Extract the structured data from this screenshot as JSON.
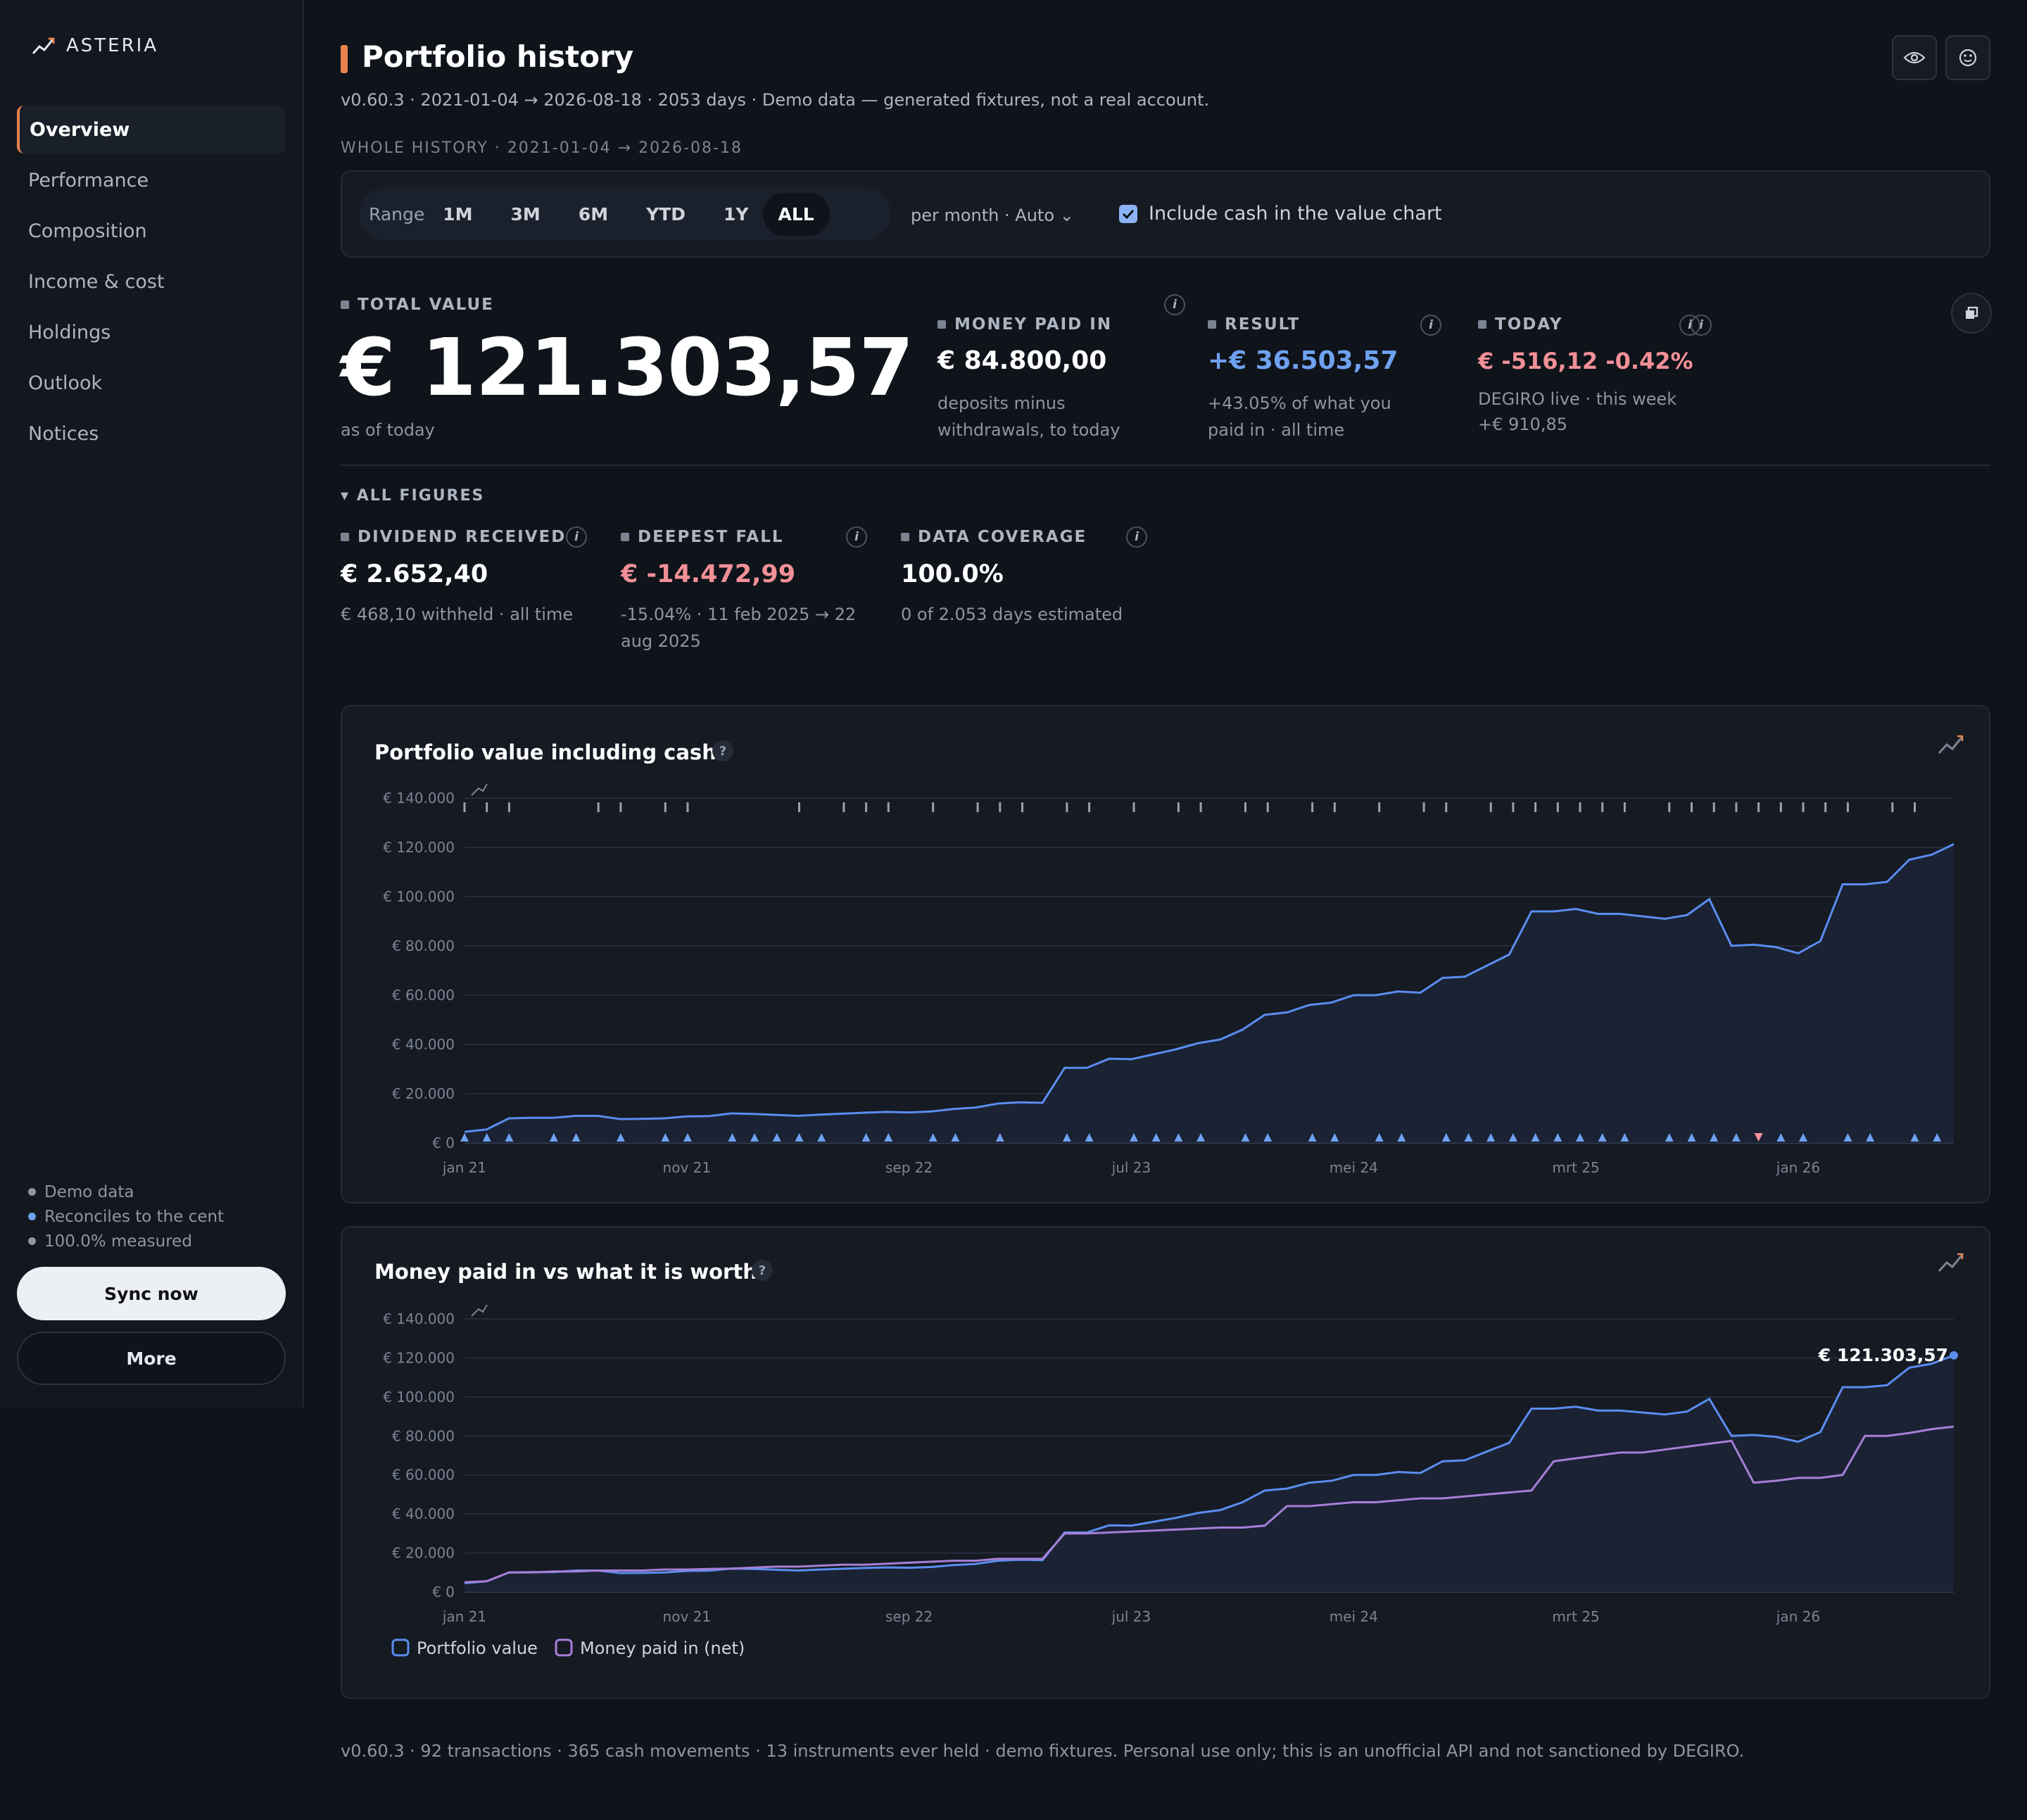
{
  "brand": {
    "name": "ASTERIA",
    "icon": "trend-icon"
  },
  "sidebar": {
    "items": [
      {
        "label": "Overview",
        "active": true
      },
      {
        "label": "Performance"
      },
      {
        "label": "Composition"
      },
      {
        "label": "Income & cost"
      },
      {
        "label": "Holdings"
      },
      {
        "label": "Outlook"
      },
      {
        "label": "Notices"
      }
    ],
    "status": [
      "Demo data",
      "Reconciles to the cent",
      "100.0% measured"
    ],
    "sync_label": "Sync now",
    "more_label": "More"
  },
  "header": {
    "title": "Portfolio history",
    "subtitle": "v0.60.3 · 2021-01-04 → 2026-08-18 · 2053 days · Demo data — generated fixtures, not a real account.",
    "icons": [
      "eye-icon",
      "smiley-icon"
    ]
  },
  "range": {
    "caption": "WHOLE HISTORY · 2021-01-04 → 2026-08-18",
    "label": "Range",
    "options": [
      "1M",
      "3M",
      "6M",
      "YTD",
      "1Y",
      "ALL"
    ],
    "selected": "ALL",
    "granularity": "per month · Auto ⌄",
    "include_cash_label": "Include cash in the value chart",
    "include_cash": true
  },
  "kpis": {
    "total": {
      "label": "TOTAL VALUE",
      "value": "€ 121.303,57",
      "sub": "as of today"
    },
    "paid_in": {
      "label": "MONEY PAID IN",
      "value": "€ 84.800,00",
      "sub1": "deposits minus",
      "sub2": "withdrawals, to today"
    },
    "result": {
      "label": "RESULT",
      "value": "+€ 36.503,57",
      "sub1": "+43.05% of what you",
      "sub2": "paid in · all time"
    },
    "today": {
      "label": "TODAY",
      "value": "€ -516,12 -0.42%",
      "sub1": "DEGIRO live · this week",
      "sub2": "+€ 910,85"
    }
  },
  "all_figures": {
    "toggle": "▾ ALL FIGURES",
    "dividend": {
      "label": "DIVIDEND RECEIVED",
      "value": "€ 2.652,40",
      "sub": "€ 468,10 withheld · all time"
    },
    "fall": {
      "label": "DEEPEST FALL",
      "value": "€ -14.472,99",
      "sub1": "-15.04% · 11 feb 2025 → 22",
      "sub2": "aug 2025"
    },
    "coverage": {
      "label": "DATA COVERAGE",
      "value": "100.0%",
      "sub": "0 of 2.053 days estimated"
    }
  },
  "chart1": {
    "title": "Portfolio value including cash",
    "help": "?"
  },
  "chart2": {
    "title": "Money paid in vs what it is worth",
    "help": "?",
    "end_label": "€ 121.303,57"
  },
  "footer": "v0.60.3 · 92 transactions · 365 cash movements · 13 instruments ever held · demo fixtures. Personal use only; this is an unofficial API and not sanctioned by DEGIRO.",
  "colors": {
    "accent": "#e8834e",
    "value": "#5b8def",
    "paid": "#a67fd6",
    "negative": "#f29097",
    "positive": "#6fa1f0"
  },
  "chart_data": [
    {
      "type": "area",
      "title": "Portfolio value including cash",
      "x_ticks": [
        "jan 21",
        "nov 21",
        "sep 22",
        "jul 23",
        "mei 24",
        "mrt 25",
        "jan 26"
      ],
      "y_ticks": [
        "€ 0",
        "€ 20.000",
        "€ 40.000",
        "€ 60.000",
        "€ 80.000",
        "€ 100.000",
        "€ 120.000",
        "€ 140.000"
      ],
      "ylim": [
        0,
        140000
      ],
      "grid": true,
      "series": [
        {
          "name": "Portfolio value",
          "values": [
            4500,
            5500,
            10000,
            10200,
            10200,
            11000,
            11000,
            9700,
            9800,
            10000,
            10800,
            10900,
            12000,
            11800,
            11400,
            11000,
            11500,
            11900,
            12300,
            12600,
            12400,
            12800,
            13800,
            14400,
            16000,
            16500,
            16300,
            30500,
            30500,
            34200,
            34000,
            36000,
            38000,
            40500,
            42000,
            46000,
            52000,
            53000,
            56000,
            57000,
            60000,
            60000,
            61500,
            61000,
            67000,
            67500,
            72000,
            76500,
            94000,
            94000,
            95000,
            93000,
            93000,
            92000,
            91000,
            92500,
            99000,
            80000,
            80500,
            79500,
            77000,
            82000,
            105000,
            105000,
            106000,
            115000,
            117000,
            121303
          ]
        }
      ],
      "markers": "buy (▲) and sell (▼) event markers along the baseline; transaction ticks along the top",
      "grid_on": true
    },
    {
      "type": "line",
      "title": "Money paid in vs what it is worth",
      "x_ticks": [
        "jan 21",
        "nov 21",
        "sep 22",
        "jul 23",
        "mei 24",
        "mrt 25",
        "jan 26"
      ],
      "y_ticks": [
        "€ 0",
        "€ 20.000",
        "€ 40.000",
        "€ 60.000",
        "€ 80.000",
        "€ 100.000",
        "€ 120.000",
        "€ 140.000"
      ],
      "ylim": [
        0,
        140000
      ],
      "legend": [
        "Portfolio value",
        "Money paid in (net)"
      ],
      "legend_position": "bottom-left",
      "series": [
        {
          "name": "Portfolio value",
          "values": [
            4500,
            5500,
            10000,
            10200,
            10200,
            11000,
            11000,
            9700,
            9800,
            10000,
            10800,
            10900,
            12000,
            11800,
            11400,
            11000,
            11500,
            11900,
            12300,
            12600,
            12400,
            12800,
            13800,
            14400,
            16000,
            16500,
            16300,
            30500,
            30500,
            34200,
            34000,
            36000,
            38000,
            40500,
            42000,
            46000,
            52000,
            53000,
            56000,
            57000,
            60000,
            60000,
            61500,
            61000,
            67000,
            67500,
            72000,
            76500,
            94000,
            94000,
            95000,
            93000,
            93000,
            92000,
            91000,
            92500,
            99000,
            80000,
            80500,
            79500,
            77000,
            82000,
            105000,
            105000,
            106000,
            115000,
            117000,
            121303
          ]
        },
        {
          "name": "Money paid in (net)",
          "values": [
            5000,
            5500,
            10000,
            10000,
            10500,
            10500,
            11000,
            11000,
            11000,
            11500,
            11500,
            11800,
            12000,
            12500,
            13000,
            13000,
            13500,
            14000,
            14000,
            14500,
            15000,
            15500,
            16000,
            16000,
            17000,
            17000,
            17000,
            30000,
            30000,
            30500,
            31000,
            31500,
            32000,
            32500,
            33000,
            33000,
            34000,
            44000,
            44000,
            45000,
            46000,
            46000,
            47000,
            48000,
            48000,
            49000,
            50000,
            51000,
            52000,
            67000,
            68500,
            70000,
            71500,
            71500,
            73000,
            74500,
            76000,
            77500,
            56000,
            57000,
            58500,
            58500,
            60000,
            80000,
            80000,
            81500,
            83500,
            84800
          ]
        }
      ]
    }
  ]
}
